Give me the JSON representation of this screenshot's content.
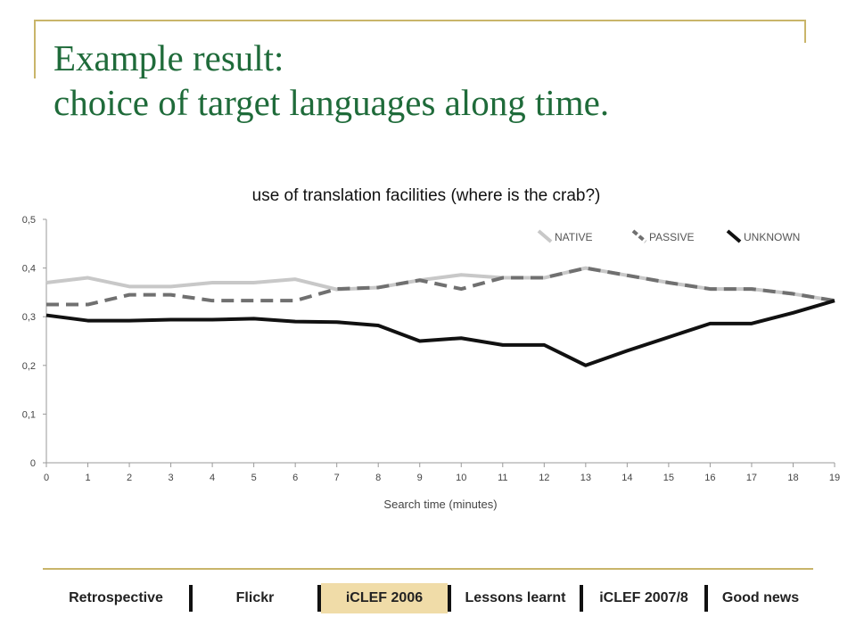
{
  "slide": {
    "title_line1": "Example result:",
    "title_line2": "choice of target languages along time.",
    "title_color": "#1f6b3a",
    "frame_color": "#c9b56a"
  },
  "chart_data": {
    "type": "line",
    "title": "use of translation facilities (where is the crab?)",
    "xlabel": "Search time (minutes)",
    "ylabel": "",
    "x": [
      0,
      1,
      2,
      3,
      4,
      5,
      6,
      7,
      8,
      9,
      10,
      11,
      12,
      13,
      14,
      15,
      16,
      17,
      18,
      19
    ],
    "ylim": [
      0,
      0.5
    ],
    "yticks": [
      "0",
      "0,1",
      "0,2",
      "0,3",
      "0,4",
      "0,5"
    ],
    "grid": false,
    "legend_position": "top-right",
    "series": [
      {
        "name": "NATIVE",
        "color": "#c8c8c8",
        "dash": "solid",
        "values": [
          0.37,
          0.38,
          0.362,
          0.362,
          0.37,
          0.37,
          0.377,
          0.356,
          0.36,
          0.375,
          0.386,
          0.38,
          0.38,
          0.4,
          0.385,
          0.37,
          0.357,
          0.357,
          0.347,
          0.333
        ]
      },
      {
        "name": "PASSIVE",
        "color": "#707070",
        "dash": "dashed",
        "values": [
          0.325,
          0.325,
          0.345,
          0.345,
          0.333,
          0.333,
          0.333,
          0.357,
          0.36,
          0.375,
          0.357,
          0.38,
          0.38,
          0.4,
          0.385,
          0.37,
          0.357,
          0.357,
          0.347,
          0.333
        ]
      },
      {
        "name": "UNKNOWN",
        "color": "#111111",
        "dash": "solid",
        "values": [
          0.303,
          0.292,
          0.292,
          0.294,
          0.294,
          0.296,
          0.29,
          0.289,
          0.282,
          0.25,
          0.256,
          0.242,
          0.242,
          0.2,
          0.23,
          0.258,
          0.286,
          0.286,
          0.308,
          0.333
        ]
      }
    ]
  },
  "nav": {
    "items": [
      {
        "label": "Retrospective",
        "active": false
      },
      {
        "label": "Flickr",
        "active": false
      },
      {
        "label": "iCLEF 2006",
        "active": true
      },
      {
        "label": "Lessons learnt",
        "active": false
      },
      {
        "label": "iCLEF 2007/8",
        "active": false
      },
      {
        "label": "Good news",
        "active": false
      }
    ],
    "active_color": "#f0dca8"
  }
}
